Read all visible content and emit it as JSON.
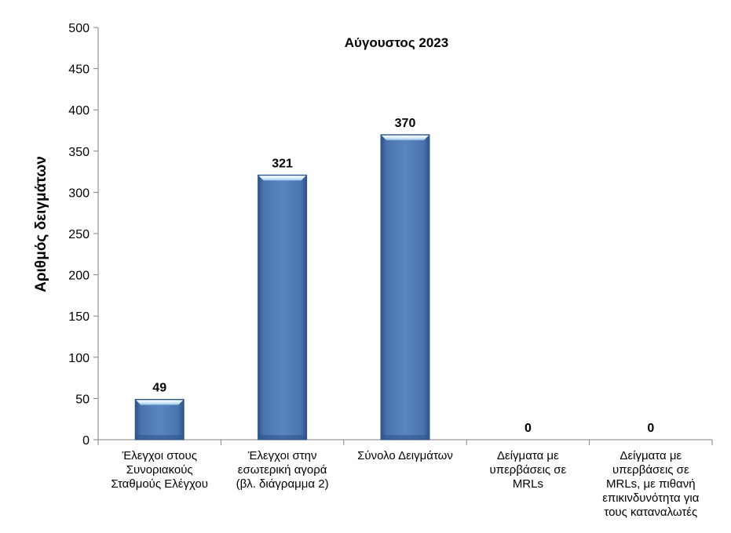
{
  "chart_data": {
    "type": "bar",
    "title": "Αύγουστος 2023",
    "xlabel": "",
    "ylabel": "Αριθμός δειγμάτων",
    "ylim": [
      0,
      500
    ],
    "yticks": [
      0,
      50,
      100,
      150,
      200,
      250,
      300,
      350,
      400,
      450,
      500
    ],
    "grid": false,
    "legend": "none",
    "categories": [
      [
        "Έλεγχοι στους",
        "Συνοριακούς",
        "Σταθμούς Ελέγχου"
      ],
      [
        "Έλεγχοι στην",
        "εσωτερική αγορά",
        "(βλ. διάγραμμα 2)"
      ],
      [
        "Σύνολο Δειγμάτων"
      ],
      [
        "Δείγματα με",
        "υπερβάσεις σε",
        "MRLs"
      ],
      [
        "Δείγματα με",
        "υπερβάσεις σε",
        "MRLs, με πιθανή",
        "επικινδυνότητα για",
        "τους καταναλωτές"
      ]
    ],
    "values": [
      49,
      321,
      370,
      0,
      0
    ],
    "colors": {
      "bar": "#4a74ad",
      "bar_dark": "#2e5487",
      "bar_light": "#6a93c8",
      "highlight": "#e3f2fb",
      "axis": "#808080"
    }
  }
}
